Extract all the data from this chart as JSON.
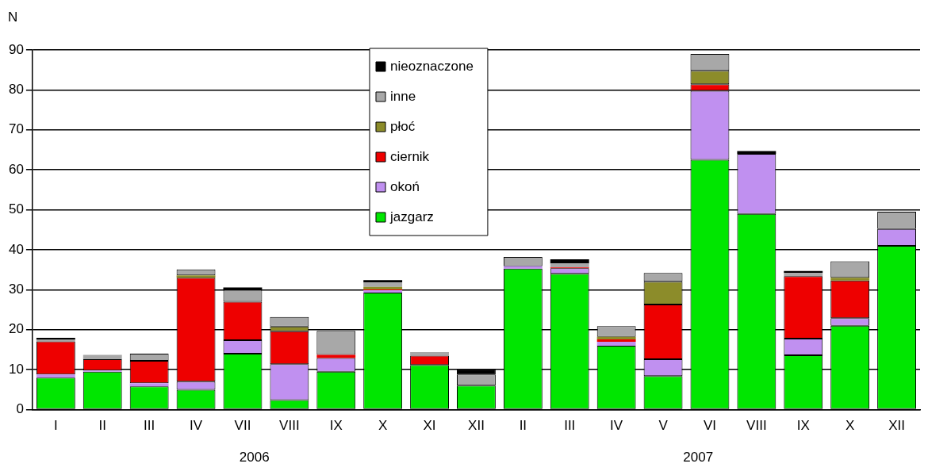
{
  "chart_data": {
    "type": "bar",
    "stacked": true,
    "ylabel": "N",
    "categories": [
      "I",
      "II",
      "III",
      "IV",
      "VII",
      "VIII",
      "IX",
      "X",
      "XI",
      "XII",
      "II",
      "III",
      "IV",
      "V",
      "VI",
      "VIII",
      "IX",
      "X",
      "XII"
    ],
    "series": [
      {
        "name": "jazgarz",
        "color": "#00e600",
        "values": [
          8,
          9.5,
          5.8,
          5,
          14,
          2.4,
          9.5,
          29.3,
          11.2,
          6,
          35.3,
          34,
          16,
          8.4,
          62.5,
          49,
          13.6,
          21,
          41
        ]
      },
      {
        "name": "okoń",
        "color": "#c090f0",
        "values": [
          0.8,
          0.3,
          0.8,
          2,
          3.4,
          9,
          3.4,
          0.6,
          0,
          0,
          0.6,
          1.4,
          1,
          4.2,
          17.3,
          15,
          4.2,
          1.9,
          4.2
        ]
      },
      {
        "name": "ciernik",
        "color": "#ee0000",
        "values": [
          8.3,
          2.8,
          5.6,
          26,
          9.6,
          8.2,
          0.8,
          0.2,
          2.3,
          0,
          0,
          0.2,
          0.6,
          13.7,
          1.6,
          0,
          15.6,
          9.4,
          0
        ]
      },
      {
        "name": "płoć",
        "color": "#8c8c2a",
        "values": [
          0,
          0,
          0,
          0.6,
          0,
          1.2,
          0,
          0.6,
          0,
          0,
          0,
          0,
          0.6,
          5.7,
          3.4,
          0,
          0,
          0.7,
          0
        ]
      },
      {
        "name": "inne",
        "color": "#a8a8a8",
        "values": [
          0.4,
          1.1,
          1.8,
          1.5,
          3,
          2.4,
          6,
          1.1,
          0.9,
          2.8,
          2.3,
          1,
          2.7,
          2.2,
          4.2,
          0,
          0.8,
          4.1,
          4.3
        ]
      },
      {
        "name": "nieoznaczone",
        "color": "#000000",
        "values": [
          0.5,
          0,
          0,
          0,
          0.6,
          0,
          0,
          0.6,
          0,
          1.3,
          0,
          1,
          0,
          0,
          0,
          0.7,
          0.5,
          0,
          0
        ]
      }
    ],
    "ylim": [
      0,
      90
    ],
    "yticks": [
      0,
      10,
      20,
      30,
      40,
      50,
      60,
      70,
      80,
      90
    ],
    "grid": "y",
    "legend": "top",
    "annotations": [
      "2006",
      "2007"
    ]
  }
}
